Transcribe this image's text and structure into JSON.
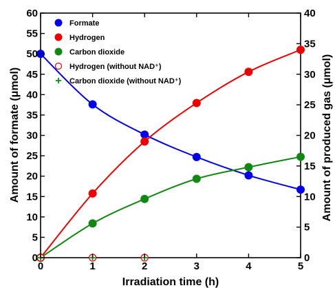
{
  "chart_data": {
    "type": "line",
    "title": "",
    "xlabel": "Irradiation time (h)",
    "ylabel_left": "Amount of formate (μmol)",
    "ylabel_right": "Amount of produced gas (μmol)",
    "xlim": [
      0,
      5
    ],
    "ylim_left": [
      0,
      60
    ],
    "ylim_right": [
      0,
      40
    ],
    "x_ticks": [
      0,
      1,
      2,
      3,
      4,
      5
    ],
    "y_left_ticks": [
      0,
      5,
      10,
      15,
      20,
      25,
      30,
      35,
      40,
      45,
      50,
      55,
      60
    ],
    "y_right_ticks": [
      0,
      5,
      10,
      15,
      20,
      25,
      30,
      35,
      40
    ],
    "grid": false,
    "legend_position": "top-left",
    "series": [
      {
        "name": "Formate",
        "axis": "left",
        "marker": "filled-circle",
        "color": "#0000ee",
        "line": true,
        "x": [
          0,
          1,
          2,
          3,
          4,
          5
        ],
        "y": [
          50,
          37.6,
          30.2,
          24.7,
          20.2,
          16.7
        ]
      },
      {
        "name": "Hydrogen",
        "axis": "right",
        "marker": "filled-circle",
        "color": "#ee0000",
        "line": true,
        "x": [
          0,
          1,
          2,
          3,
          4,
          5
        ],
        "y": [
          0,
          10.5,
          19,
          25.3,
          30.4,
          34
        ]
      },
      {
        "name": "Carbon dioxide",
        "axis": "right",
        "marker": "filled-circle",
        "color": "#118811",
        "line": true,
        "x": [
          0,
          1,
          2,
          3,
          4,
          5
        ],
        "y": [
          0,
          5.6,
          9.6,
          12.9,
          14.8,
          16.5
        ]
      },
      {
        "name": "Hydrogen (without NAD⁺)",
        "axis": "right",
        "marker": "open-circle",
        "color": "#ee0000",
        "line": false,
        "x": [
          0,
          1,
          2
        ],
        "y": [
          0,
          0,
          0
        ]
      },
      {
        "name": "Carbon dioxide (without NAD⁺)",
        "axis": "right",
        "marker": "plus",
        "color": "#118811",
        "line": false,
        "x": [
          0,
          1,
          2
        ],
        "y": [
          0,
          0,
          0
        ]
      }
    ]
  }
}
